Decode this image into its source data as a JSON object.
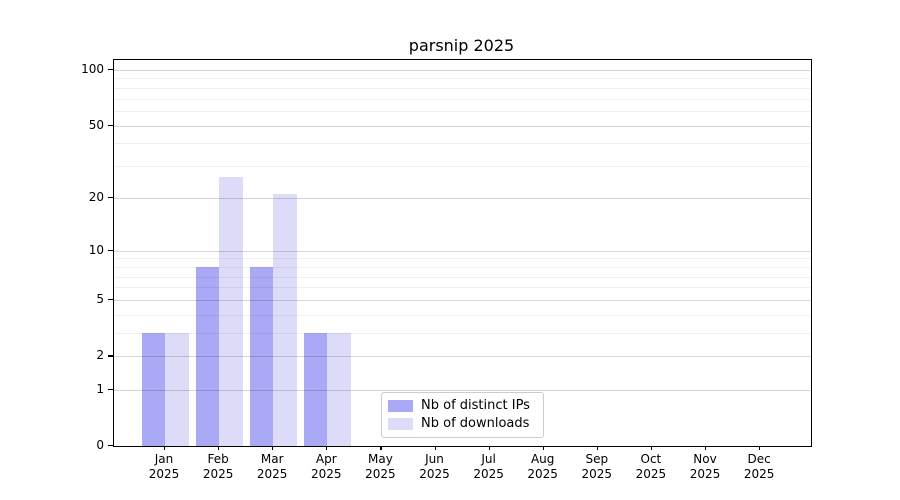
{
  "chart_data": {
    "type": "bar",
    "title": "parsnip 2025",
    "categories": [
      "Jan 2025",
      "Feb 2025",
      "Mar 2025",
      "Apr 2025",
      "May 2025",
      "Jun 2025",
      "Jul 2025",
      "Aug 2025",
      "Sep 2025",
      "Oct 2025",
      "Nov 2025",
      "Dec 2025"
    ],
    "series": [
      {
        "name": "Nb of distinct IPs",
        "color": "#a9a9f6",
        "values": [
          3,
          8,
          8,
          3,
          0,
          0,
          0,
          0,
          0,
          0,
          0,
          0
        ]
      },
      {
        "name": "Nb of downloads",
        "color": "#dcdcf8",
        "values": [
          3,
          26,
          21,
          3,
          0,
          0,
          0,
          0,
          0,
          0,
          0,
          0
        ]
      }
    ],
    "xlabel": "",
    "ylabel": "",
    "yscale": "log1p",
    "ylim": [
      0,
      113
    ],
    "yticks": [
      0,
      1,
      2,
      5,
      10,
      20,
      50,
      100
    ],
    "yticks_minor": [
      3,
      4,
      6,
      7,
      8,
      9,
      30,
      40,
      60,
      70,
      80,
      90
    ],
    "grid": true,
    "legend_position": "lower center"
  },
  "colors": {
    "background": "#ffffff",
    "axis": "#000000",
    "text": "#000000",
    "grid_major": "rgba(0,0,0,0.16)",
    "grid_minor": "rgba(0,0,0,0.06)",
    "legend_border": "#cccccc",
    "bar_distinct_ips": "#a9a9f6",
    "bar_downloads": "#dcdcf8"
  }
}
